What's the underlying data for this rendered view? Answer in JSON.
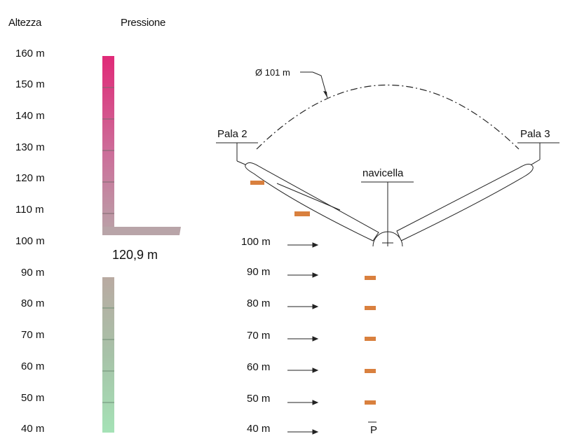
{
  "headers": {
    "altezza": "Altezza",
    "pressione": "Pressione"
  },
  "altitude_labels": [
    "160 m",
    "150 m",
    "140 m",
    "130 m",
    "120 m",
    "110 m",
    "100 m",
    "90 m",
    "80 m",
    "70 m",
    "60 m",
    "50 m",
    "40 m"
  ],
  "hub_height_label": "120,9 m",
  "turbine": {
    "diameter_label": "Ø 101 m",
    "blade_left_label": "Pala 2",
    "blade_right_label": "Pala 3",
    "nacelle_label": "navicella",
    "tower_label_partial": "P"
  },
  "wind_labels": [
    "100 m",
    "90 m",
    "80 m",
    "70 m",
    "60 m",
    "50 m",
    "40 m"
  ],
  "colors": {
    "pressure_top": "#e0307a",
    "pressure_mid": "#b39a99",
    "pressure_bottom": "#a8e0b8",
    "orange_tag": "#d9803e"
  }
}
